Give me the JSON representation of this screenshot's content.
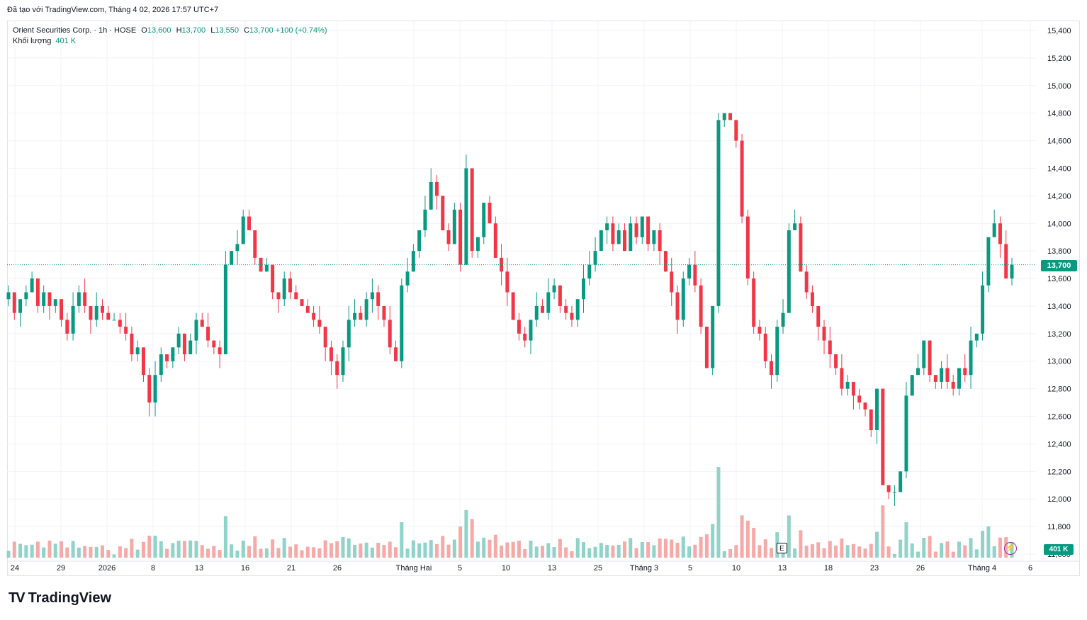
{
  "caption": "Đã tạo với TradingView.com, Tháng 4 02, 2026 17:57 UTC+7",
  "legend": {
    "symbol": "Orient Securities Corp. · 1h · HOSE",
    "o_label": "O",
    "o_value": "13,600",
    "h_label": "H",
    "h_value": "13,700",
    "l_label": "L",
    "l_value": "13,550",
    "c_label": "C",
    "c_value": "13,700",
    "change": "+100 (+0.74%)",
    "volume_label": "Khối lượng",
    "volume_value": "401 K"
  },
  "badges": {
    "last_price": "13,700",
    "last_volume": "401 K",
    "earnings": "E",
    "bolt": "⚡"
  },
  "logo": {
    "mark": "TV",
    "word": "TradingView"
  },
  "colors": {
    "up": "#089981",
    "down": "#f23645",
    "up_vol": "#8fd3c9",
    "down_vol": "#f7a9a7",
    "grid": "#f0f3fa"
  },
  "chart_data": {
    "type": "candlestick",
    "y_ticks": [
      "15,400",
      "15,200",
      "15,000",
      "14,800",
      "14,600",
      "14,400",
      "14,200",
      "14,000",
      "13,800",
      "13,600",
      "13,400",
      "13,200",
      "13,000",
      "12,800",
      "12,600",
      "12,400",
      "12,200",
      "12,000",
      "11,800",
      "11,600"
    ],
    "ylim": [
      11600,
      15400
    ],
    "x_ticks": [
      "24",
      "29",
      "2026",
      "8",
      "13",
      "16",
      "21",
      "26",
      "Tháng Hai",
      "5",
      "10",
      "13",
      "25",
      "Tháng 3",
      "5",
      "10",
      "13",
      "18",
      "23",
      "26",
      "Tháng 4",
      "6"
    ],
    "last_price": 13700,
    "closes": [
      13500,
      13350,
      13450,
      13500,
      13600,
      13400,
      13500,
      13400,
      13450,
      13300,
      13200,
      13400,
      13500,
      13400,
      13300,
      13400,
      13350,
      13300,
      13300,
      13250,
      13200,
      13050,
      13100,
      12900,
      12700,
      12900,
      13050,
      13000,
      13100,
      13200,
      13050,
      13150,
      13300,
      13250,
      13150,
      13100,
      13050,
      13700,
      13800,
      13850,
      14050,
      13950,
      13750,
      13650,
      13700,
      13500,
      13450,
      13600,
      13500,
      13450,
      13400,
      13350,
      13300,
      13250,
      13100,
      13000,
      12900,
      13100,
      13300,
      13350,
      13300,
      13450,
      13500,
      13400,
      13300,
      13100,
      13000,
      13550,
      13650,
      13800,
      13950,
      14100,
      14300,
      14200,
      13950,
      13850,
      14100,
      13700,
      14400,
      13800,
      13900,
      14150,
      14000,
      13750,
      13650,
      13500,
      13300,
      13200,
      13150,
      13300,
      13400,
      13350,
      13500,
      13550,
      13400,
      13350,
      13300,
      13450,
      13600,
      13700,
      13800,
      13950,
      14000,
      13850,
      13950,
      13800,
      14000,
      13900,
      14050,
      13850,
      13950,
      13800,
      13650,
      13500,
      13300,
      13600,
      13700,
      13550,
      13250,
      12950,
      13400,
      14750,
      14800,
      14750,
      14600,
      14050,
      13600,
      13250,
      13200,
      13000,
      12900,
      13250,
      13350,
      13950,
      14000,
      13650,
      13500,
      13400,
      13250,
      13150,
      13050,
      12950,
      12800,
      12850,
      12750,
      12700,
      12650,
      12500,
      12800,
      12100,
      12050,
      12050,
      12200,
      12750,
      12900,
      12950,
      13150,
      12900,
      12850,
      12950,
      12850,
      12800,
      12950,
      12900,
      13150,
      13200,
      13550,
      13900,
      14000,
      13850,
      13600,
      13700
    ]
  }
}
